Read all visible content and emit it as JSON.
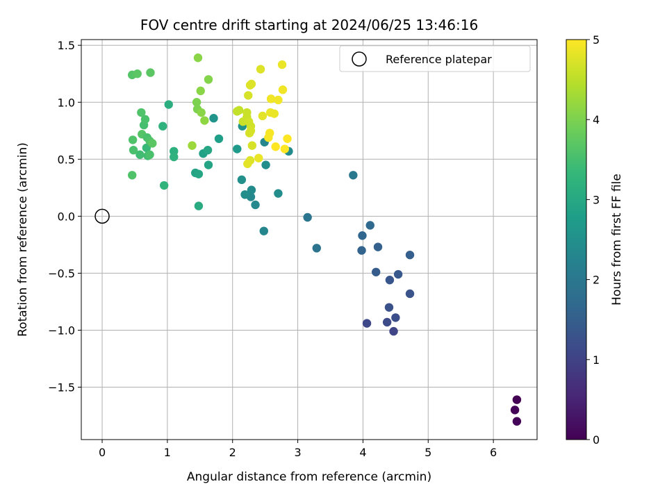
{
  "chart_data": {
    "type": "scatter",
    "title": "FOV centre drift starting at 2024/06/25 13:46:16",
    "xlabel": "Angular distance from reference (arcmin)",
    "ylabel": "Rotation from reference (arcmin)",
    "xlim": [
      -0.32,
      6.67
    ],
    "ylim": [
      -1.96,
      1.55
    ],
    "xticks": [
      0,
      1,
      2,
      3,
      4,
      5,
      6
    ],
    "xtick_labels": [
      "0",
      "1",
      "2",
      "3",
      "4",
      "5",
      "6"
    ],
    "yticks": [
      -1.5,
      -1.0,
      -0.5,
      0.0,
      0.5,
      1.0,
      1.5
    ],
    "ytick_labels": [
      "−1.5",
      "−1.0",
      "−0.5",
      "0.0",
      "0.5",
      "1.0",
      "1.5"
    ],
    "grid": true,
    "legend": {
      "placement": "top-right",
      "entries": [
        "Reference platepar"
      ]
    },
    "reference_point": {
      "x": 0.0,
      "y": 0.0,
      "label": "Reference platepar"
    },
    "colorbar": {
      "label": "Hours from first FF file",
      "range": [
        0,
        5
      ],
      "ticks": [
        0,
        1,
        2,
        3,
        4,
        5
      ],
      "tick_labels": [
        "0",
        "1",
        "2",
        "3",
        "4",
        "5"
      ],
      "colormap": [
        "#440154",
        "#482878",
        "#3e4989",
        "#31688e",
        "#26828e",
        "#1f9e89",
        "#35b779",
        "#6ece58",
        "#b5de2b",
        "#fde725"
      ]
    },
    "points": [
      {
        "x": 6.36,
        "y": -1.61,
        "c": 0.02
      },
      {
        "x": 6.33,
        "y": -1.7,
        "c": 0.04
      },
      {
        "x": 6.36,
        "y": -1.8,
        "c": 0.06
      },
      {
        "x": 4.47,
        "y": -1.01,
        "c": 1.05
      },
      {
        "x": 4.06,
        "y": -0.94,
        "c": 1.1
      },
      {
        "x": 4.37,
        "y": -0.93,
        "c": 1.15
      },
      {
        "x": 4.5,
        "y": -0.89,
        "c": 1.2
      },
      {
        "x": 4.4,
        "y": -0.8,
        "c": 1.25
      },
      {
        "x": 4.72,
        "y": -0.68,
        "c": 1.3
      },
      {
        "x": 4.41,
        "y": -0.56,
        "c": 1.35
      },
      {
        "x": 4.54,
        "y": -0.51,
        "c": 1.4
      },
      {
        "x": 4.2,
        "y": -0.49,
        "c": 1.45
      },
      {
        "x": 4.72,
        "y": -0.34,
        "c": 1.5
      },
      {
        "x": 4.23,
        "y": -0.27,
        "c": 1.55
      },
      {
        "x": 3.98,
        "y": -0.3,
        "c": 1.6
      },
      {
        "x": 3.99,
        "y": -0.17,
        "c": 1.65
      },
      {
        "x": 4.11,
        "y": -0.08,
        "c": 1.7
      },
      {
        "x": 3.29,
        "y": -0.28,
        "c": 1.9
      },
      {
        "x": 3.15,
        "y": -0.01,
        "c": 1.95
      },
      {
        "x": 3.85,
        "y": 0.36,
        "c": 2.0
      },
      {
        "x": 2.48,
        "y": -0.13,
        "c": 2.3
      },
      {
        "x": 2.35,
        "y": 0.1,
        "c": 2.35
      },
      {
        "x": 2.28,
        "y": 0.17,
        "c": 2.35
      },
      {
        "x": 2.29,
        "y": 0.23,
        "c": 2.4
      },
      {
        "x": 2.19,
        "y": 0.19,
        "c": 2.45
      },
      {
        "x": 2.7,
        "y": 0.2,
        "c": 2.45
      },
      {
        "x": 2.14,
        "y": 0.32,
        "c": 2.5
      },
      {
        "x": 2.51,
        "y": 0.45,
        "c": 2.45
      },
      {
        "x": 2.49,
        "y": 0.65,
        "c": 2.3
      },
      {
        "x": 2.86,
        "y": 0.57,
        "c": 2.4
      },
      {
        "x": 2.15,
        "y": 0.79,
        "c": 2.55
      },
      {
        "x": 1.71,
        "y": 0.86,
        "c": 2.6
      },
      {
        "x": 2.07,
        "y": 0.59,
        "c": 2.7
      },
      {
        "x": 1.79,
        "y": 0.68,
        "c": 2.8
      },
      {
        "x": 1.55,
        "y": 0.55,
        "c": 2.85
      },
      {
        "x": 1.62,
        "y": 0.58,
        "c": 2.95
      },
      {
        "x": 1.63,
        "y": 0.45,
        "c": 2.9
      },
      {
        "x": 1.43,
        "y": 0.38,
        "c": 2.9
      },
      {
        "x": 1.48,
        "y": 0.37,
        "c": 2.95
      },
      {
        "x": 1.48,
        "y": 0.09,
        "c": 3.05
      },
      {
        "x": 1.02,
        "y": 0.98,
        "c": 3.1
      },
      {
        "x": 1.1,
        "y": 0.57,
        "c": 3.15
      },
      {
        "x": 1.1,
        "y": 0.52,
        "c": 3.2
      },
      {
        "x": 0.95,
        "y": 0.27,
        "c": 3.25
      },
      {
        "x": 0.93,
        "y": 0.79,
        "c": 3.2
      },
      {
        "x": 0.68,
        "y": 0.6,
        "c": 3.35
      },
      {
        "x": 0.7,
        "y": 0.53,
        "c": 3.45
      },
      {
        "x": 0.58,
        "y": 0.54,
        "c": 3.45
      },
      {
        "x": 0.73,
        "y": 0.54,
        "c": 3.55
      },
      {
        "x": 0.48,
        "y": 0.58,
        "c": 3.55
      },
      {
        "x": 0.47,
        "y": 0.67,
        "c": 3.6
      },
      {
        "x": 0.46,
        "y": 0.36,
        "c": 3.6
      },
      {
        "x": 0.64,
        "y": 0.8,
        "c": 3.5
      },
      {
        "x": 0.66,
        "y": 0.85,
        "c": 3.55
      },
      {
        "x": 0.6,
        "y": 0.91,
        "c": 3.6
      },
      {
        "x": 0.61,
        "y": 0.72,
        "c": 3.65
      },
      {
        "x": 0.69,
        "y": 0.69,
        "c": 3.55
      },
      {
        "x": 0.73,
        "y": 0.66,
        "c": 3.6
      },
      {
        "x": 0.77,
        "y": 0.64,
        "c": 3.7
      },
      {
        "x": 0.46,
        "y": 1.24,
        "c": 3.65
      },
      {
        "x": 0.54,
        "y": 1.25,
        "c": 3.7
      },
      {
        "x": 0.74,
        "y": 1.26,
        "c": 3.7
      },
      {
        "x": 1.47,
        "y": 1.39,
        "c": 4.1
      },
      {
        "x": 1.63,
        "y": 1.2,
        "c": 4.05
      },
      {
        "x": 1.51,
        "y": 1.1,
        "c": 4.1
      },
      {
        "x": 1.45,
        "y": 1.0,
        "c": 4.0
      },
      {
        "x": 1.46,
        "y": 0.94,
        "c": 4.0
      },
      {
        "x": 1.52,
        "y": 0.91,
        "c": 4.1
      },
      {
        "x": 1.57,
        "y": 0.84,
        "c": 4.15
      },
      {
        "x": 1.38,
        "y": 0.62,
        "c": 4.25
      },
      {
        "x": 2.07,
        "y": 0.92,
        "c": 4.55
      },
      {
        "x": 2.1,
        "y": 0.93,
        "c": 4.55
      },
      {
        "x": 2.22,
        "y": 0.91,
        "c": 4.6
      },
      {
        "x": 2.22,
        "y": 0.87,
        "c": 4.6
      },
      {
        "x": 2.16,
        "y": 0.83,
        "c": 4.6
      },
      {
        "x": 2.25,
        "y": 0.83,
        "c": 4.65
      },
      {
        "x": 2.28,
        "y": 0.79,
        "c": 4.65
      },
      {
        "x": 2.28,
        "y": 0.75,
        "c": 4.7
      },
      {
        "x": 2.26,
        "y": 0.73,
        "c": 4.7
      },
      {
        "x": 2.3,
        "y": 0.62,
        "c": 4.7
      },
      {
        "x": 2.24,
        "y": 1.06,
        "c": 4.7
      },
      {
        "x": 2.27,
        "y": 1.15,
        "c": 4.75
      },
      {
        "x": 2.29,
        "y": 1.16,
        "c": 4.75
      },
      {
        "x": 2.43,
        "y": 1.29,
        "c": 4.75
      },
      {
        "x": 2.27,
        "y": 0.49,
        "c": 4.75
      },
      {
        "x": 2.23,
        "y": 0.46,
        "c": 4.8
      },
      {
        "x": 2.4,
        "y": 0.51,
        "c": 4.85
      },
      {
        "x": 2.46,
        "y": 0.88,
        "c": 4.8
      },
      {
        "x": 2.58,
        "y": 0.91,
        "c": 4.85
      },
      {
        "x": 2.64,
        "y": 0.9,
        "c": 4.85
      },
      {
        "x": 2.59,
        "y": 1.03,
        "c": 4.9
      },
      {
        "x": 2.7,
        "y": 1.02,
        "c": 4.9
      },
      {
        "x": 2.77,
        "y": 1.11,
        "c": 4.9
      },
      {
        "x": 2.76,
        "y": 1.33,
        "c": 4.85
      },
      {
        "x": 2.55,
        "y": 0.69,
        "c": 4.95
      },
      {
        "x": 2.57,
        "y": 0.73,
        "c": 4.95
      },
      {
        "x": 2.66,
        "y": 0.61,
        "c": 5.0
      },
      {
        "x": 2.8,
        "y": 0.59,
        "c": 5.0
      },
      {
        "x": 2.84,
        "y": 0.68,
        "c": 5.0
      }
    ]
  }
}
